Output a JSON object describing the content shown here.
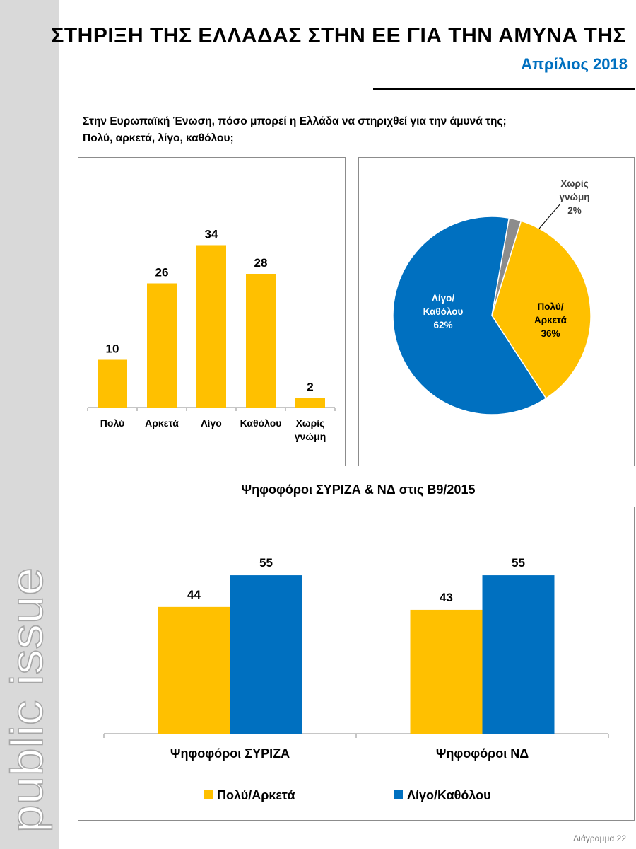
{
  "brand": {
    "text": "public issue"
  },
  "header": {
    "title": "ΣΤΗΡΙΞΗ ΤΗΣ ΕΛΛΑΔΑΣ ΣΤΗΝ ΕΕ ΓΙΑ ΤΗΝ ΑΜΥΝΑ ΤΗΣ",
    "date": "Απρίλιος 2018"
  },
  "question": {
    "line1": "Στην Ευρωπαϊκή Ένωση, πόσο μπορεί η Ελλάδα να στηριχθεί για την άμυνά της;",
    "line2": "Πολύ, αρκετά, λίγο, καθόλου;"
  },
  "subtitle": "Ψηφοφόροι ΣΥΡΙΖΑ & ΝΔ στις Β9/2015",
  "footer": "Διάγραμμα 22",
  "colors": {
    "yellow": "#ffc000",
    "blue": "#0070c0",
    "gray": "#8c8c8c"
  },
  "chart_data": [
    {
      "type": "bar",
      "categories": [
        [
          "Πολύ"
        ],
        [
          "Αρκετά"
        ],
        [
          "Λίγο"
        ],
        [
          "Καθόλου"
        ],
        [
          "Χωρίς",
          "γνώμη"
        ]
      ],
      "values": [
        10,
        26,
        34,
        28,
        2
      ],
      "ylim": [
        0,
        40
      ]
    },
    {
      "type": "pie",
      "slices": [
        {
          "label": [
            "Χωρίς",
            "γνώμη",
            "2%"
          ],
          "value": 2,
          "color": "#8c8c8c"
        },
        {
          "label": [
            "Πολύ/",
            "Αρκετά",
            "36%"
          ],
          "value": 36,
          "color": "#ffc000"
        },
        {
          "label": [
            "Λίγο/",
            "Καθόλου",
            "62%"
          ],
          "value": 62,
          "color": "#0070c0"
        }
      ]
    },
    {
      "type": "bar",
      "categories": [
        "Ψηφοφόροι ΣΥΡΙΖΑ",
        "Ψηφοφόροι ΝΔ"
      ],
      "series": [
        {
          "name": "Πολύ/Αρκετά",
          "values": [
            44,
            43
          ],
          "color": "#ffc000"
        },
        {
          "name": "Λίγο/Καθόλου",
          "values": [
            55,
            55
          ],
          "color": "#0070c0"
        }
      ],
      "ylim": [
        0,
        70
      ],
      "legend": "bottom"
    }
  ]
}
